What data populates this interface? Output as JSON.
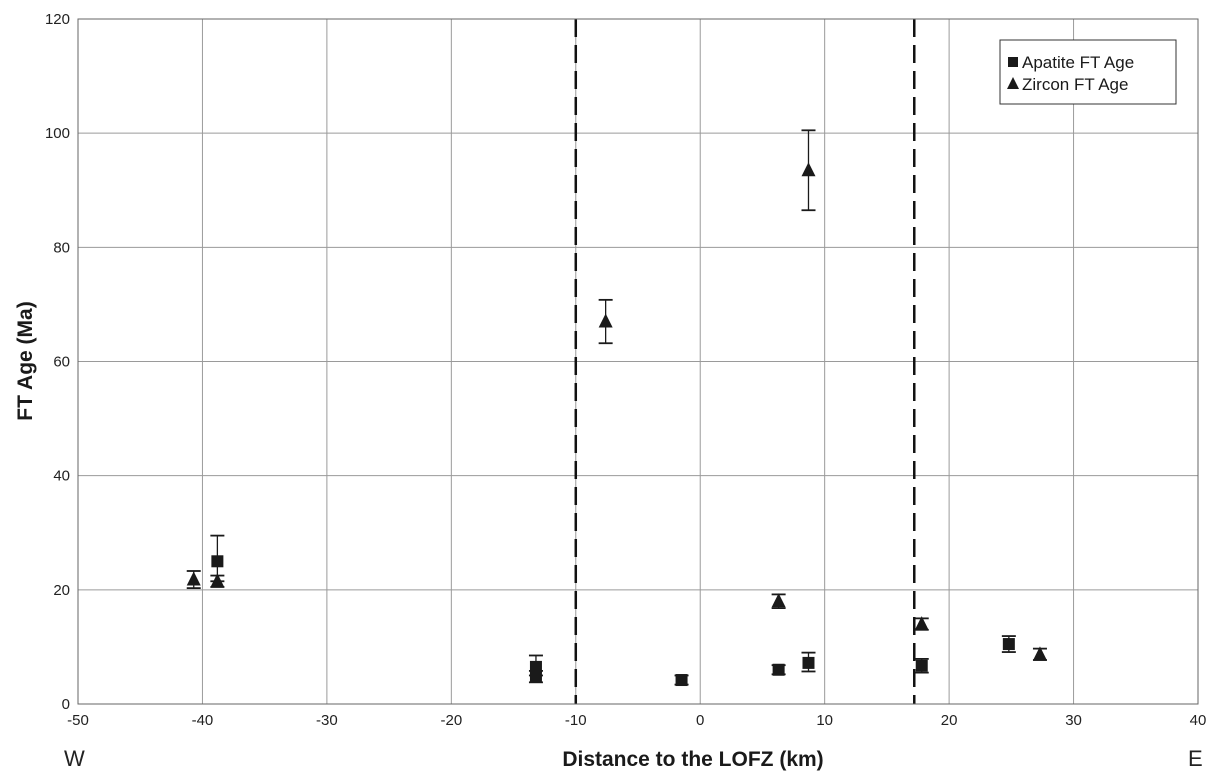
{
  "chart_data": {
    "type": "scatter",
    "xlabel": "Distance to the LOFZ (km)",
    "ylabel": "FT Age (Ma)",
    "xlim": [
      -50,
      40
    ],
    "ylim": [
      0,
      120
    ],
    "x_ticks": [
      "-50",
      "-40",
      "-30",
      "-20",
      "-10",
      "0",
      "10",
      "20",
      "30",
      "40"
    ],
    "y_ticks": [
      "0",
      "20",
      "40",
      "60",
      "80",
      "100",
      "120"
    ],
    "grid": true,
    "legend_position": "top-right",
    "direction_labels": {
      "west": "W",
      "east": "E"
    },
    "reference_lines_x": [
      -10,
      17.2
    ],
    "series": [
      {
        "name": "Apatite FT Age",
        "marker": "square",
        "color": "#1a1a1a",
        "points": [
          {
            "x": -38.8,
            "y": 25,
            "err_lo": 3.5,
            "err_hi": 4.5
          },
          {
            "x": -13.2,
            "y": 6.5,
            "err_lo": 1.5,
            "err_hi": 2.0
          },
          {
            "x": -13.2,
            "y": 4.8,
            "err_lo": 1.0,
            "err_hi": 1.0
          },
          {
            "x": -1.5,
            "y": 4.2,
            "err_lo": 0.8,
            "err_hi": 0.8
          },
          {
            "x": 6.3,
            "y": 6.0,
            "err_lo": 0.8,
            "err_hi": 0.8
          },
          {
            "x": 8.7,
            "y": 7.2,
            "err_lo": 1.5,
            "err_hi": 1.8
          },
          {
            "x": 17.8,
            "y": 6.7,
            "err_lo": 1.2,
            "err_hi": 1.2
          },
          {
            "x": 24.8,
            "y": 10.5,
            "err_lo": 1.4,
            "err_hi": 1.4
          }
        ]
      },
      {
        "name": "Zircon FT Age",
        "marker": "triangle",
        "color": "#1a1a1a",
        "points": [
          {
            "x": -40.7,
            "y": 21.8,
            "err_lo": 1.5,
            "err_hi": 1.5
          },
          {
            "x": -38.8,
            "y": 21.5,
            "err_lo": 1.0,
            "err_hi": 1.0
          },
          {
            "x": -7.6,
            "y": 67,
            "err_lo": 3.8,
            "err_hi": 3.8
          },
          {
            "x": 6.3,
            "y": 18,
            "err_lo": 1.2,
            "err_hi": 1.2
          },
          {
            "x": 8.7,
            "y": 93.5,
            "err_lo": 7.0,
            "err_hi": 7.0
          },
          {
            "x": 17.8,
            "y": 14,
            "err_lo": 1.0,
            "err_hi": 1.0
          },
          {
            "x": 27.3,
            "y": 8.7,
            "err_lo": 1.0,
            "err_hi": 1.0
          }
        ]
      }
    ]
  }
}
